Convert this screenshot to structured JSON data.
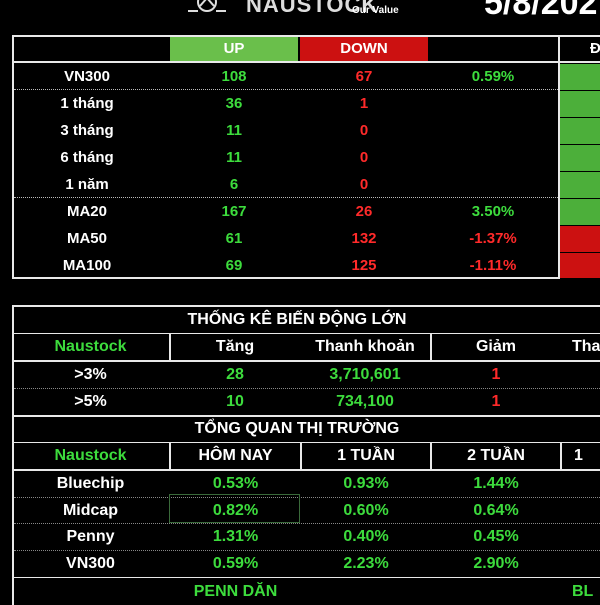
{
  "header": {
    "brand": "NAUSTOCK",
    "tagline": "Our Value",
    "date": "5/8/202",
    "logo_icon": "naustock-logo-icon"
  },
  "summary": {
    "col_up": "UP",
    "col_down": "DOWN",
    "col_extra": "Đ",
    "rows": [
      {
        "label": "VN300",
        "up": "108",
        "down": "67",
        "pct": "0.59%",
        "pct_color": "green",
        "bar": "green"
      },
      {
        "label": "1 tháng",
        "up": "36",
        "down": "1",
        "pct": "",
        "pct_color": "green",
        "bar": "green"
      },
      {
        "label": "3 tháng",
        "up": "11",
        "down": "0",
        "pct": "",
        "pct_color": "green",
        "bar": "green"
      },
      {
        "label": "6 tháng",
        "up": "11",
        "down": "0",
        "pct": "",
        "pct_color": "green",
        "bar": "green"
      },
      {
        "label": "1 năm",
        "up": "6",
        "down": "0",
        "pct": "",
        "pct_color": "green",
        "bar": "green"
      },
      {
        "label": "MA20",
        "up": "167",
        "down": "26",
        "pct": "3.50%",
        "pct_color": "green",
        "bar": "green"
      },
      {
        "label": "MA50",
        "up": "61",
        "down": "132",
        "pct": "-1.37%",
        "pct_color": "red",
        "bar": "red"
      },
      {
        "label": "MA100",
        "up": "69",
        "down": "125",
        "pct": "-1.11%",
        "pct_color": "red",
        "bar": "red"
      }
    ],
    "colors": {
      "up_bg": "#6abf4b",
      "down_bg": "#cc1111",
      "green": "#3ddc3d",
      "red": "#ff2a2a"
    }
  },
  "volatility": {
    "title": "THỐNG KÊ BIẾN ĐỘNG LỚN",
    "headers": [
      "Naustock",
      "Tăng",
      "Thanh khoản",
      "Giảm",
      "Tha"
    ],
    "rows": [
      {
        "label": ">3%",
        "tang": "28",
        "thanh_khoan": "3,710,601",
        "giam": "1"
      },
      {
        "label": ">5%",
        "tang": "10",
        "thanh_khoan": "734,100",
        "giam": "1"
      }
    ]
  },
  "market": {
    "title": "TỔNG QUAN THỊ TRƯỜNG",
    "headers": [
      "Naustock",
      "HÔM NAY",
      "1 TUẦN",
      "2 TUẦN",
      "1"
    ],
    "rows": [
      {
        "label": "Bluechip",
        "today": "0.53%",
        "w1": "0.93%",
        "w2": "1.44%"
      },
      {
        "label": "Midcap",
        "today": "0.82%",
        "w1": "0.60%",
        "w2": "0.64%"
      },
      {
        "label": "Penny",
        "today": "1.31%",
        "w1": "0.40%",
        "w2": "0.45%"
      },
      {
        "label": "VN300",
        "today": "0.59%",
        "w1": "2.23%",
        "w2": "2.90%"
      }
    ],
    "footer": [
      "PENN DĂN",
      "BL"
    ]
  }
}
